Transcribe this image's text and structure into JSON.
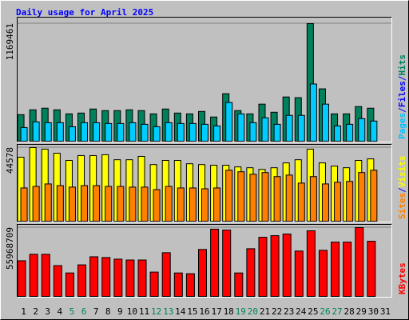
{
  "title": "Daily usage for April 2025",
  "chart_data": [
    {
      "type": "bar",
      "ylim": [
        0,
        1225000
      ],
      "yticks": [
        1169461
      ],
      "side_label": [
        "Pages",
        "/",
        "Files",
        "/",
        "Hits"
      ],
      "side_label_colors": [
        "#00c0ff",
        "#0000ff",
        "#0000ff",
        "#0000ff",
        "#00805c"
      ],
      "series": [
        {
          "color": "#00805c",
          "values": [
            270000,
            318000,
            334000,
            318000,
            278000,
            286000,
            326000,
            310000,
            310000,
            318000,
            310000,
            278000,
            326000,
            286000,
            278000,
            302000,
            247000,
            477000,
            310000,
            278000,
            374000,
            294000,
            445000,
            438000,
            1169461,
            525000,
            278000,
            278000,
            350000,
            334000,
            null
          ]
        },
        {
          "color": "#00ccff",
          "values": [
            143000,
            199000,
            191000,
            191000,
            151000,
            191000,
            191000,
            183000,
            183000,
            191000,
            175000,
            151000,
            191000,
            183000,
            183000,
            175000,
            159000,
            390000,
            278000,
            191000,
            239000,
            175000,
            263000,
            263000,
            573000,
            374000,
            159000,
            175000,
            231000,
            207000,
            null
          ]
        }
      ]
    },
    {
      "type": "bar",
      "ylim": [
        0,
        46000
      ],
      "yticks": [
        44578
      ],
      "side_label": [
        "Sites",
        "/",
        "Visits"
      ],
      "side_label_colors": [
        "#ff8000",
        "#0000ff",
        "#ffff00"
      ],
      "series": [
        {
          "color": "#ffff00",
          "values": [
            38800,
            44578,
            43650,
            41200,
            36900,
            39800,
            39800,
            40300,
            37300,
            37300,
            39300,
            34400,
            36900,
            36900,
            34900,
            34400,
            34000,
            34000,
            33000,
            32500,
            31500,
            32500,
            35400,
            37300,
            43650,
            35400,
            33500,
            32500,
            36900,
            37800,
            null
          ]
        },
        {
          "color": "#ff8000",
          "values": [
            20400,
            21300,
            22800,
            21800,
            20900,
            21800,
            21800,
            21300,
            21300,
            20900,
            20900,
            19400,
            21300,
            20400,
            20400,
            19900,
            20400,
            31000,
            30100,
            28600,
            29600,
            27200,
            28100,
            23300,
            27200,
            22800,
            23800,
            24300,
            29600,
            31000,
            null
          ]
        }
      ]
    },
    {
      "type": "bar",
      "ylim": [
        0,
        57900000
      ],
      "yticks": [
        55968709
      ],
      "side_label": [
        "KBytes"
      ],
      "side_label_colors": [
        "#ff0000"
      ],
      "categories": [
        "1",
        "2",
        "3",
        "4",
        "5",
        "6",
        "7",
        "8",
        "9",
        "10",
        "11",
        "12",
        "13",
        "14",
        "15",
        "16",
        "17",
        "18",
        "19",
        "20",
        "21",
        "22",
        "23",
        "24",
        "25",
        "26",
        "27",
        "28",
        "29",
        "30",
        "31"
      ],
      "category_colors": [
        "#000000",
        "#000000",
        "#000000",
        "#000000",
        "#00805c",
        "#00805c",
        "#000000",
        "#000000",
        "#000000",
        "#000000",
        "#000000",
        "#00805c",
        "#00805c",
        "#000000",
        "#000000",
        "#000000",
        "#000000",
        "#000000",
        "#00805c",
        "#00805c",
        "#000000",
        "#000000",
        "#000000",
        "#000000",
        "#000000",
        "#00805c",
        "#00805c",
        "#000000",
        "#000000",
        "#000000",
        "#000000"
      ],
      "series": [
        {
          "color": "#ff0000",
          "values": [
            29300000,
            34500000,
            34500000,
            25400000,
            19500000,
            26000000,
            32500000,
            31900000,
            30600000,
            29900000,
            29900000,
            20200000,
            35800000,
            19500000,
            18900000,
            38400000,
            54700000,
            54000000,
            19500000,
            39000000,
            48200000,
            49500000,
            50800000,
            37100000,
            53400000,
            37700000,
            44300000,
            44300000,
            55968709,
            45000000,
            null
          ]
        }
      ]
    }
  ]
}
